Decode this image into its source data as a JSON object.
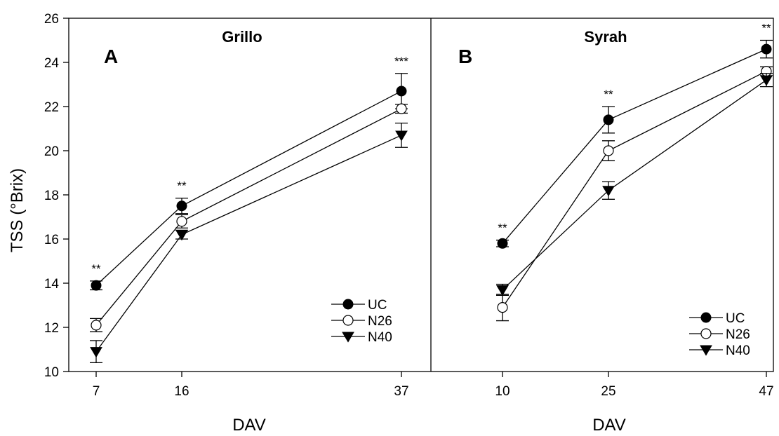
{
  "chart_data": [
    {
      "type": "line",
      "panel_letter": "A",
      "title": "Grillo",
      "xlabel": "DAV",
      "ylabel": "TSS (°Brix)",
      "ylim": [
        10,
        26
      ],
      "yticks": [
        10,
        12,
        14,
        16,
        18,
        20,
        22,
        24,
        26
      ],
      "x": [
        7,
        16,
        37
      ],
      "xticks": [
        7,
        16,
        37
      ],
      "legend_position": "bottom-right",
      "grid": false,
      "series": [
        {
          "name": "UC",
          "marker": "filled-circle",
          "values": [
            13.9,
            17.5,
            22.7
          ],
          "errors": [
            0.2,
            0.35,
            0.8
          ]
        },
        {
          "name": "N26",
          "marker": "open-circle",
          "values": [
            12.1,
            16.8,
            21.9
          ],
          "errors": [
            0.3,
            0.3,
            0.2
          ]
        },
        {
          "name": "N40",
          "marker": "filled-triangle-down",
          "values": [
            10.9,
            16.2,
            20.7
          ],
          "errors": [
            0.5,
            0.2,
            0.55
          ]
        }
      ],
      "annotations": [
        "**",
        "**",
        "***"
      ]
    },
    {
      "type": "line",
      "panel_letter": "B",
      "title": "Syrah",
      "xlabel": "DAV",
      "ylabel": "",
      "ylim": [
        10,
        26
      ],
      "x": [
        10,
        25,
        47
      ],
      "xticks": [
        10,
        25,
        47
      ],
      "legend_position": "bottom-right",
      "grid": false,
      "series": [
        {
          "name": "UC",
          "marker": "filled-circle",
          "values": [
            15.8,
            21.4,
            24.6
          ],
          "errors": [
            0.15,
            0.6,
            0.4
          ]
        },
        {
          "name": "N26",
          "marker": "open-circle",
          "values": [
            12.9,
            20.0,
            23.6
          ],
          "errors": [
            0.6,
            0.45,
            0.2
          ]
        },
        {
          "name": "N40",
          "marker": "filled-triangle-down",
          "values": [
            13.7,
            18.2,
            23.2
          ],
          "errors": [
            0.25,
            0.4,
            0.3
          ]
        }
      ],
      "annotations": [
        "**",
        "**",
        "**"
      ]
    }
  ]
}
